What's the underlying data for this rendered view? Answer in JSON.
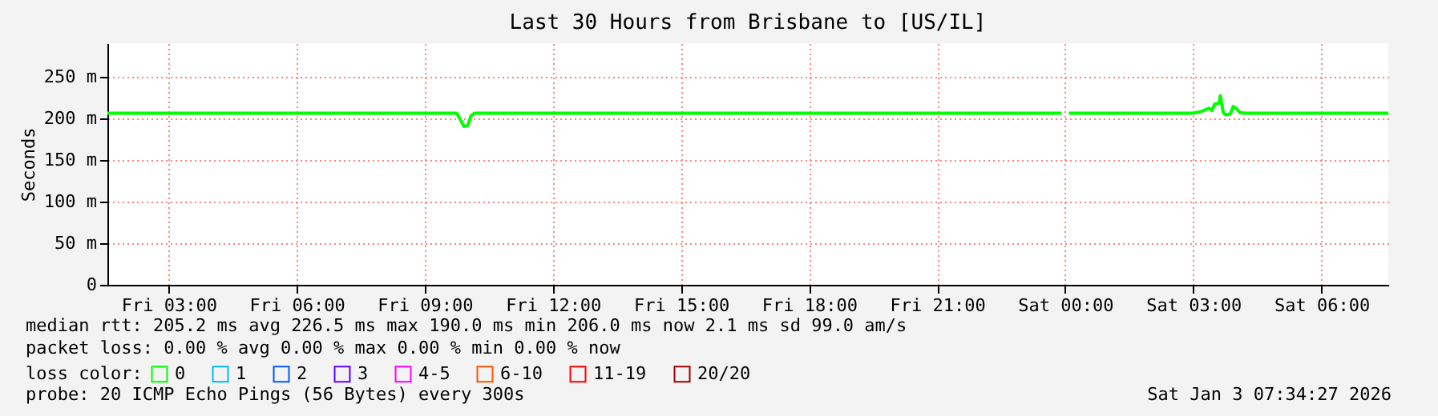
{
  "chart_data": {
    "type": "line",
    "title": "Last 30 Hours from Brisbane to [US/IL]",
    "ylabel": "Seconds",
    "legend_title": "loss color:",
    "legend": "bottom",
    "grid": true,
    "marker": "none",
    "line_style": "solid",
    "x": [
      "2026-01-02T01:34",
      "2026-01-02T03:00",
      "2026-01-02T06:00",
      "2026-01-02T09:00",
      "2026-01-02T09:45",
      "2026-01-02T09:50",
      "2026-01-02T09:55",
      "2026-01-02T10:00",
      "2026-01-02T10:05",
      "2026-01-02T10:10",
      "2026-01-02T12:00",
      "2026-01-02T15:00",
      "2026-01-02T18:00",
      "2026-01-02T21:00",
      "2026-01-02T23:55",
      "2026-01-03T00:00",
      "2026-01-03T00:05",
      "2026-01-03T03:00",
      "2026-01-03T03:11",
      "2026-01-03T03:22",
      "2026-01-03T03:26",
      "2026-01-03T03:30",
      "2026-01-03T03:36",
      "2026-01-03T03:38",
      "2026-01-03T03:42",
      "2026-01-03T03:45",
      "2026-01-03T03:52",
      "2026-01-03T03:56",
      "2026-01-03T04:00",
      "2026-01-03T04:05",
      "2026-01-03T04:12",
      "2026-01-03T07:34"
    ],
    "series": [
      {
        "name": "0",
        "color": "#00ff00",
        "values": [
          206,
          206,
          206,
          206,
          206,
          198,
          190,
          191,
          203,
          206,
          206,
          206,
          206,
          206,
          206,
          null,
          206,
          206,
          208,
          212,
          209,
          217,
          218,
          227,
          207,
          204,
          205,
          214,
          212,
          207,
          206,
          206
        ]
      },
      {
        "name": "1",
        "color": "#00b8ff",
        "values": [
          null,
          null,
          null,
          null,
          null,
          null,
          null,
          null,
          null,
          null,
          null,
          null,
          null,
          null,
          null,
          null,
          null,
          null,
          null,
          null,
          null,
          null,
          null,
          null,
          null,
          null,
          null,
          null,
          null,
          null,
          null,
          null
        ]
      },
      {
        "name": "2",
        "color": "#0059ff",
        "values": [
          null,
          null,
          null,
          null,
          null,
          null,
          null,
          null,
          null,
          null,
          null,
          null,
          null,
          null,
          null,
          null,
          null,
          null,
          null,
          null,
          null,
          null,
          null,
          null,
          null,
          null,
          null,
          null,
          null,
          null,
          null,
          null
        ]
      },
      {
        "name": "3",
        "color": "#5e00ff",
        "values": [
          null,
          null,
          null,
          null,
          null,
          null,
          null,
          null,
          null,
          null,
          null,
          null,
          null,
          null,
          null,
          null,
          null,
          null,
          null,
          null,
          null,
          null,
          null,
          null,
          null,
          null,
          null,
          null,
          null,
          null,
          null,
          null
        ]
      },
      {
        "name": "4-5",
        "color": "#ff00ff",
        "values": [
          null,
          null,
          null,
          null,
          null,
          null,
          null,
          null,
          null,
          null,
          null,
          null,
          null,
          null,
          null,
          null,
          null,
          null,
          null,
          null,
          null,
          null,
          null,
          null,
          null,
          null,
          null,
          null,
          null,
          null,
          null,
          null
        ]
      },
      {
        "name": "6-10",
        "color": "#ff5500",
        "values": [
          null,
          null,
          null,
          null,
          null,
          null,
          null,
          null,
          null,
          null,
          null,
          null,
          null,
          null,
          null,
          null,
          null,
          null,
          null,
          null,
          null,
          null,
          null,
          null,
          null,
          null,
          null,
          null,
          null,
          null,
          null,
          null
        ]
      },
      {
        "name": "11-19",
        "color": "#ff0000",
        "values": [
          null,
          null,
          null,
          null,
          null,
          null,
          null,
          null,
          null,
          null,
          null,
          null,
          null,
          null,
          null,
          null,
          null,
          null,
          null,
          null,
          null,
          null,
          null,
          null,
          null,
          null,
          null,
          null,
          null,
          null,
          null,
          null
        ]
      },
      {
        "name": "20/20",
        "color": "#a10000",
        "values": [
          null,
          null,
          null,
          null,
          null,
          null,
          null,
          null,
          null,
          null,
          null,
          null,
          null,
          null,
          null,
          null,
          null,
          null,
          null,
          null,
          null,
          null,
          null,
          null,
          null,
          null,
          null,
          null,
          null,
          null,
          null,
          null
        ]
      }
    ],
    "xlim": [
      "2026-01-02T01:34",
      "2026-01-03T07:34"
    ],
    "xticks": [
      {
        "value": "2026-01-02T03:00",
        "label": "Fri 03:00"
      },
      {
        "value": "2026-01-02T06:00",
        "label": "Fri 06:00"
      },
      {
        "value": "2026-01-02T09:00",
        "label": "Fri 09:00"
      },
      {
        "value": "2026-01-02T12:00",
        "label": "Fri 12:00"
      },
      {
        "value": "2026-01-02T15:00",
        "label": "Fri 15:00"
      },
      {
        "value": "2026-01-02T18:00",
        "label": "Fri 18:00"
      },
      {
        "value": "2026-01-02T21:00",
        "label": "Fri 21:00"
      },
      {
        "value": "2026-01-03T00:00",
        "label": "Sat 00:00"
      },
      {
        "value": "2026-01-03T03:00",
        "label": "Sat 03:00"
      },
      {
        "value": "2026-01-03T06:00",
        "label": "Sat 06:00"
      }
    ],
    "ylim": [
      0,
      290
    ],
    "yticks": [
      0,
      {
        "value": 50,
        "label": "50 m"
      },
      {
        "value": 100,
        "label": "100 m"
      },
      {
        "value": 150,
        "label": "150 m"
      },
      {
        "value": 200,
        "label": "200 m"
      },
      {
        "value": 250,
        "label": "250 m"
      }
    ],
    "annotations": [
      "median rtt:  205.2 ms avg  226.5 ms max  190.0 ms min  206.0 ms now  2.1 ms sd  99.0   am/s",
      "packet loss: 0.00 % avg  0.00 % max  0.00 % min  0.00 % now",
      "probe:       20 ICMP Echo Pings (56 Bytes) every 300s",
      "Sat Jan  3 07:34:27 2026"
    ]
  }
}
